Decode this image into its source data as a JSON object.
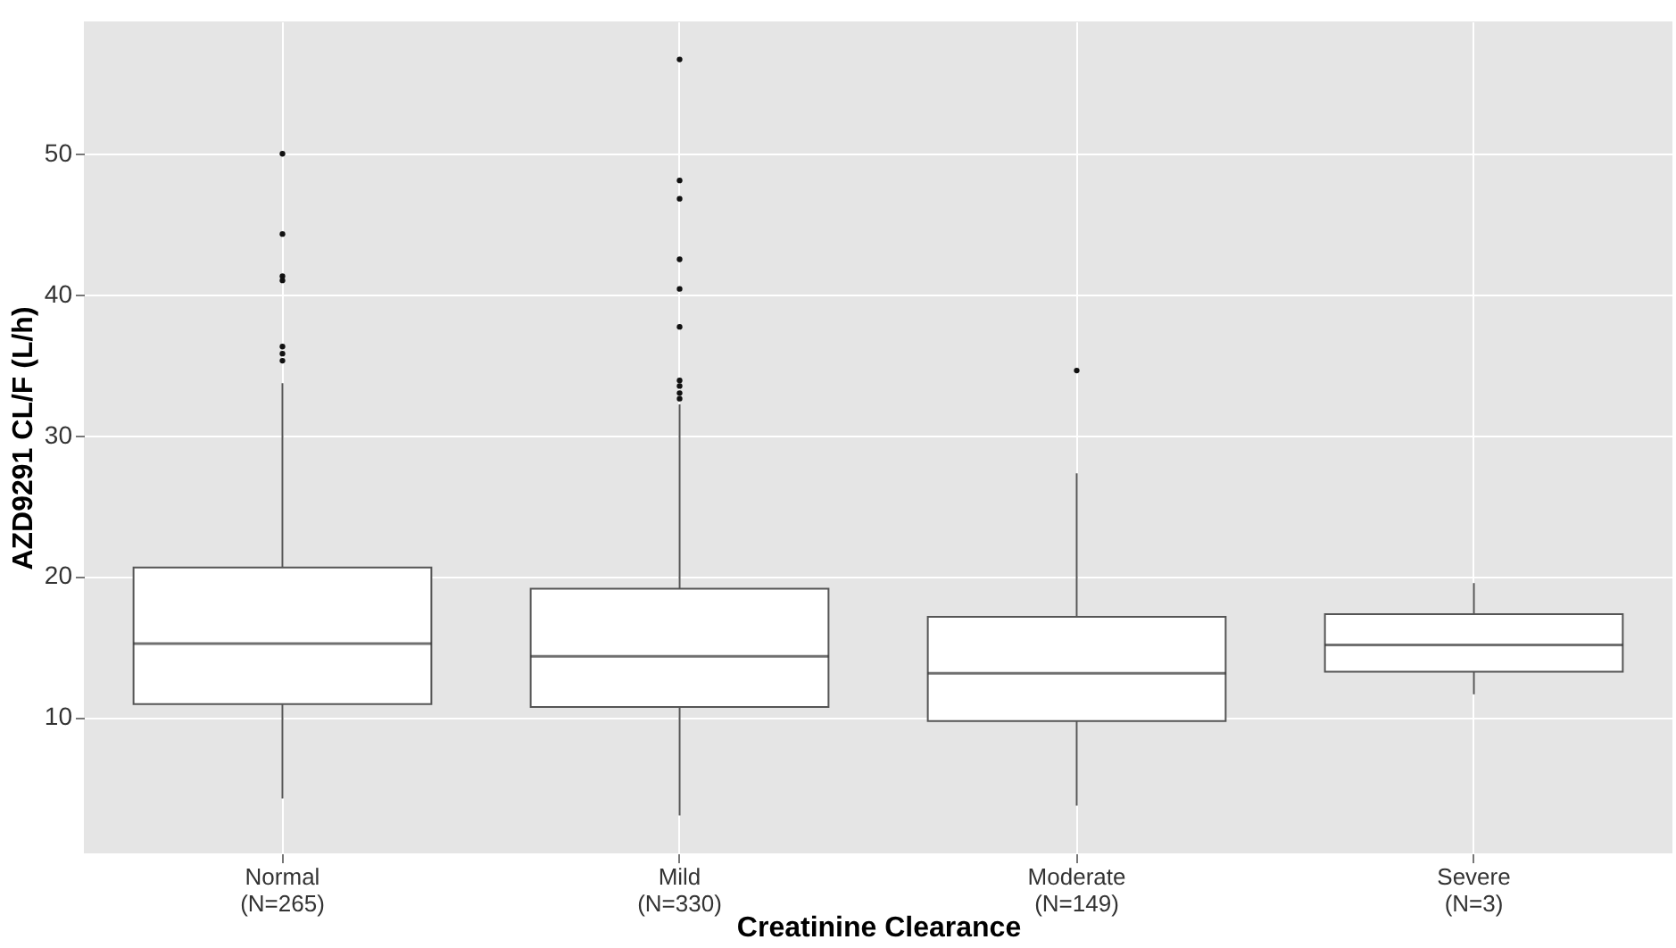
{
  "chart_data": {
    "type": "box",
    "xlabel": "Creatinine Clearance",
    "ylabel": "AZD9291 CL/F (L/h)",
    "categories": [
      "Normal\n(N=265)",
      "Mild\n(N=330)",
      "Moderate\n(N=149)",
      "Severe\n(N=3)"
    ],
    "boxes": [
      {
        "low": 4.2,
        "q1": 10.9,
        "median": 15.2,
        "q3": 20.6,
        "high": 33.7,
        "outliers": [
          35.3,
          35.8,
          36.3,
          41.0,
          41.3,
          44.3,
          50.0
        ]
      },
      {
        "low": 3.0,
        "q1": 10.7,
        "median": 14.3,
        "q3": 19.1,
        "high": 32.2,
        "outliers": [
          32.6,
          33.0,
          33.5,
          33.9,
          37.7,
          40.4,
          42.5,
          46.8,
          48.1,
          56.7
        ]
      },
      {
        "low": 3.7,
        "q1": 9.7,
        "median": 13.1,
        "q3": 17.1,
        "high": 27.3,
        "outliers": [
          34.6
        ]
      },
      {
        "low": 11.6,
        "q1": 13.2,
        "median": 15.1,
        "q3": 17.3,
        "high": 19.5
      }
    ],
    "ylim": [
      0.3,
      59.4
    ],
    "yticks": [
      10,
      20,
      30,
      40,
      50
    ],
    "grid": true
  }
}
